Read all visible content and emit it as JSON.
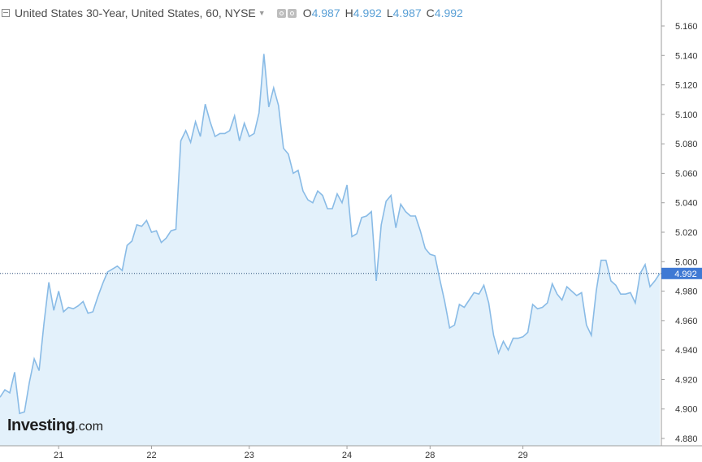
{
  "header": {
    "title": "United States 30-Year, United States, 60, NYSE",
    "ohlc": [
      {
        "key": "O",
        "value": "4.987"
      },
      {
        "key": "H",
        "value": "4.992"
      },
      {
        "key": "L",
        "value": "4.987"
      },
      {
        "key": "C",
        "value": "4.992"
      }
    ]
  },
  "logo": {
    "brand": "Investing",
    "suffix": ".com"
  },
  "icons": {
    "collapse": "collapse-square-icon",
    "caret": "caret-down-icon",
    "settings": "settings-icon",
    "visibility": "visibility-icon"
  },
  "colors": {
    "line": "#89bbe6",
    "fill": "#e3f1fb",
    "price_tag": "#3f79d4",
    "axis_text": "#333333",
    "current_line": "#2b4f7a"
  },
  "chart_data": {
    "type": "area",
    "ylim": [
      4.87,
      5.17
    ],
    "yticks": [
      "5.160",
      "5.140",
      "5.120",
      "5.100",
      "5.080",
      "5.060",
      "5.040",
      "5.020",
      "5.000",
      "4.980",
      "4.960",
      "4.940",
      "4.920",
      "4.900",
      "4.880"
    ],
    "xticks": [
      {
        "label": "21",
        "index": 12
      },
      {
        "label": "22",
        "index": 31
      },
      {
        "label": "23",
        "index": 51
      },
      {
        "label": "24",
        "index": 71
      },
      {
        "label": "28",
        "index": 88
      },
      {
        "label": "29",
        "index": 107
      }
    ],
    "current_value": "4.992",
    "grid": false,
    "values": [
      4.908,
      4.913,
      4.911,
      4.925,
      4.897,
      4.898,
      4.918,
      4.934,
      4.926,
      4.958,
      4.986,
      4.967,
      4.98,
      4.966,
      4.969,
      4.968,
      4.97,
      4.973,
      4.965,
      4.966,
      4.976,
      4.985,
      4.993,
      4.995,
      4.997,
      4.994,
      5.011,
      5.014,
      5.025,
      5.024,
      5.028,
      5.02,
      5.021,
      5.013,
      5.016,
      5.021,
      5.022,
      5.082,
      5.089,
      5.081,
      5.095,
      5.085,
      5.107,
      5.095,
      5.085,
      5.087,
      5.087,
      5.089,
      5.099,
      5.082,
      5.094,
      5.085,
      5.087,
      5.101,
      5.141,
      5.105,
      5.118,
      5.106,
      5.077,
      5.073,
      5.06,
      5.062,
      5.048,
      5.042,
      5.04,
      5.048,
      5.045,
      5.036,
      5.036,
      5.046,
      5.04,
      5.052,
      5.017,
      5.019,
      5.03,
      5.031,
      5.034,
      4.987,
      5.025,
      5.041,
      5.045,
      5.023,
      5.039,
      5.034,
      5.031,
      5.031,
      5.021,
      5.009,
      5.005,
      5.004,
      4.988,
      4.973,
      4.955,
      4.957,
      4.971,
      4.969,
      4.974,
      4.979,
      4.978,
      4.984,
      4.972,
      4.95,
      4.938,
      4.946,
      4.94,
      4.948,
      4.948,
      4.949,
      4.952,
      4.971,
      4.968,
      4.969,
      4.972,
      4.985,
      4.978,
      4.974,
      4.983,
      4.98,
      4.977,
      4.979,
      4.957,
      4.95,
      4.98,
      5.001,
      5.001,
      4.987,
      4.984,
      4.978,
      4.978,
      4.979,
      4.972,
      4.992,
      4.998,
      4.983,
      4.987,
      4.992
    ]
  }
}
